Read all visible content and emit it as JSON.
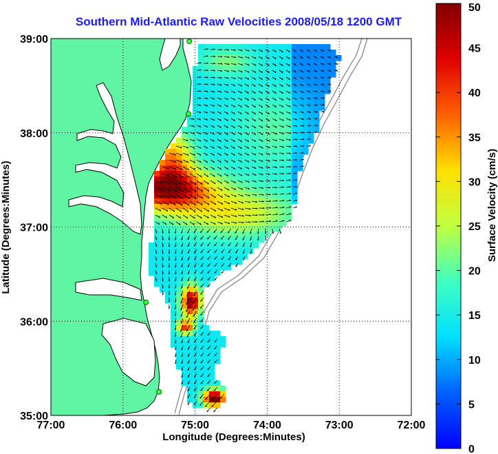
{
  "title": "Southern Mid-Atlantic Raw Velocities 2008/05/18 1200 GMT",
  "map": {
    "x_axis_label": "Longitude (Degrees:Minutes)",
    "y_axis_label": "Latitude (Degrees:Minutes)",
    "lon_range": [
      -77,
      -72
    ],
    "lat_range": [
      35,
      39
    ],
    "lon_ticks": [
      {
        "value": -77,
        "label": "77:00"
      },
      {
        "value": -76,
        "label": "76:00"
      },
      {
        "value": -75,
        "label": "75:00"
      },
      {
        "value": -74,
        "label": "74:00"
      },
      {
        "value": -73,
        "label": "73:00"
      },
      {
        "value": -72,
        "label": "72:00"
      }
    ],
    "lat_ticks": [
      {
        "value": 39,
        "label": "39:00"
      },
      {
        "value": 38,
        "label": "38:00"
      },
      {
        "value": 37,
        "label": "37:00"
      },
      {
        "value": 36,
        "label": "36:00"
      },
      {
        "value": 35,
        "label": "35:00"
      }
    ],
    "land_color": "#5ff5a5",
    "grid": "dotted",
    "stations": [
      {
        "lon": -75.08,
        "lat": 38.97
      },
      {
        "lon": -75.09,
        "lat": 38.2
      },
      {
        "lon": -75.68,
        "lat": 36.2
      },
      {
        "lon": -75.5,
        "lat": 35.25
      }
    ]
  },
  "colorbar": {
    "label": "Surface Velocity (cm/s)",
    "min": 0,
    "max": 50,
    "ticks": [
      "0",
      "5",
      "10",
      "15",
      "20",
      "25",
      "30",
      "35",
      "40",
      "45",
      "50"
    ]
  }
}
